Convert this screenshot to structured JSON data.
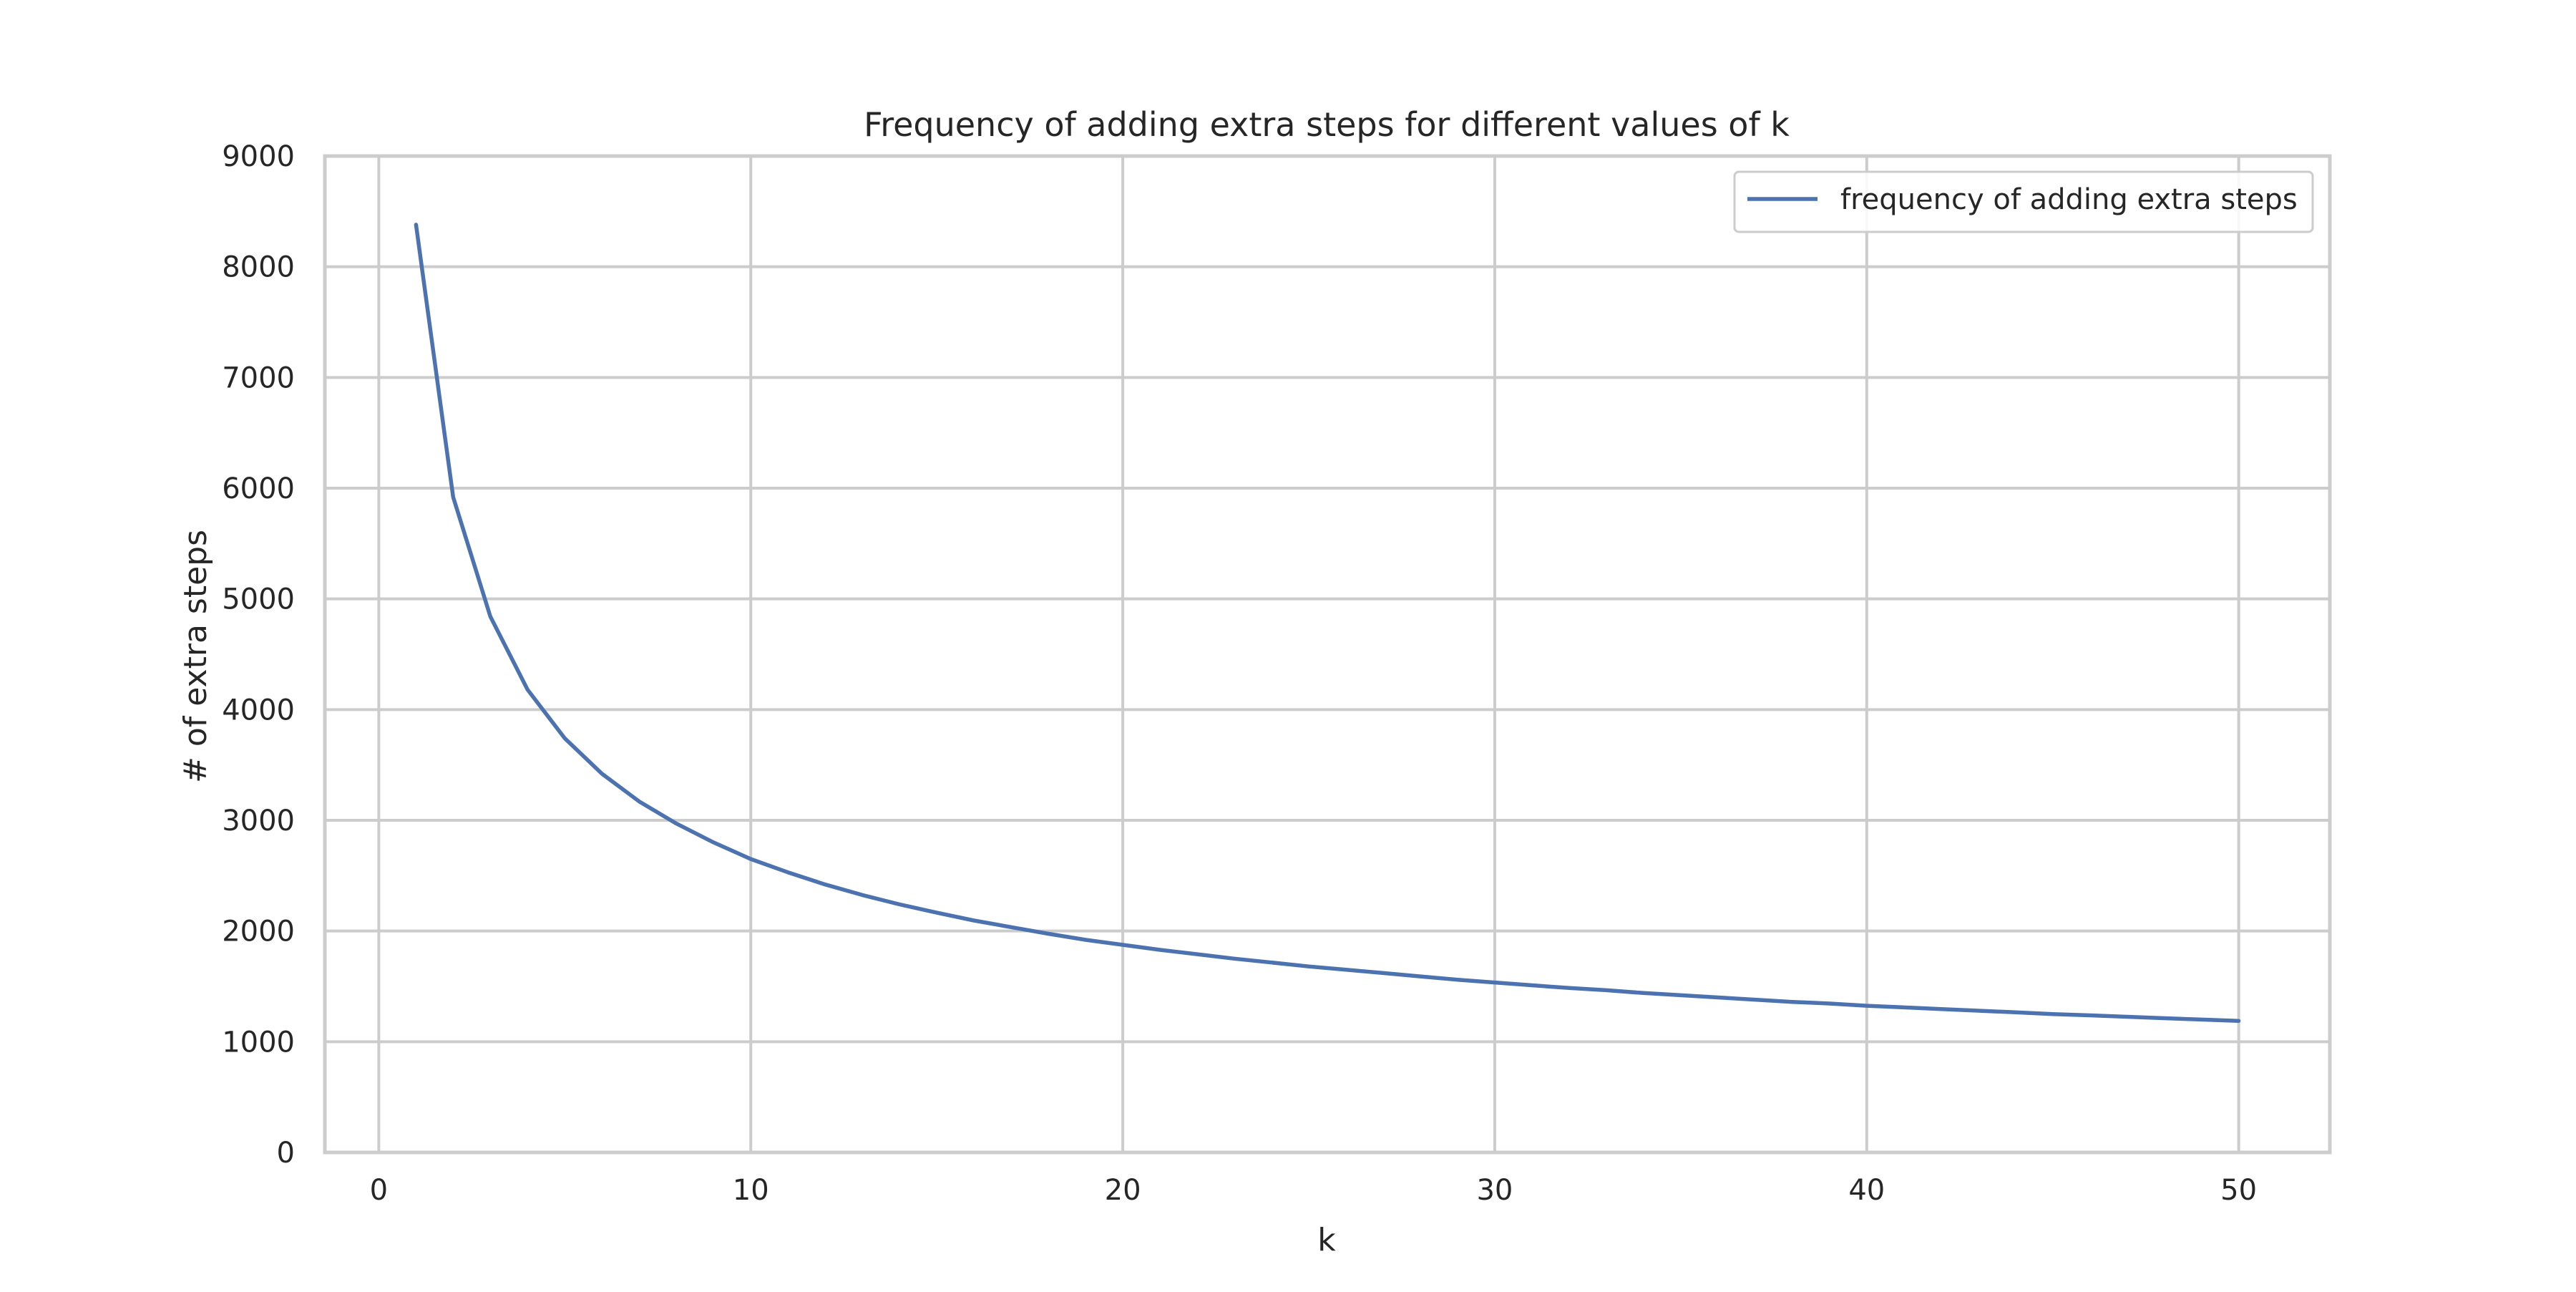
{
  "chart_data": {
    "type": "line",
    "title": "Frequency of adding extra steps for different values of k",
    "xlabel": "k",
    "ylabel": "# of extra steps",
    "xlim": [
      -1.45,
      52.45
    ],
    "ylim": [
      0,
      9000
    ],
    "x_ticks": [
      0,
      10,
      20,
      30,
      40,
      50
    ],
    "y_ticks": [
      0,
      1000,
      2000,
      3000,
      4000,
      5000,
      6000,
      7000,
      8000,
      9000
    ],
    "grid": true,
    "legend_position": "top-right",
    "series": [
      {
        "name": "frequency of adding extra steps",
        "color": "#4c72b0",
        "x": [
          1,
          2,
          3,
          4,
          5,
          6,
          7,
          8,
          9,
          10,
          11,
          12,
          13,
          14,
          15,
          16,
          17,
          18,
          19,
          20,
          21,
          22,
          23,
          24,
          25,
          26,
          27,
          28,
          29,
          30,
          31,
          32,
          33,
          34,
          35,
          36,
          37,
          38,
          39,
          40,
          41,
          42,
          43,
          44,
          45,
          46,
          47,
          48,
          49,
          50
        ],
        "y": [
          8380,
          5920,
          4840,
          4180,
          3740,
          3420,
          3170,
          2970,
          2800,
          2650,
          2530,
          2420,
          2325,
          2240,
          2165,
          2095,
          2035,
          1975,
          1920,
          1875,
          1830,
          1790,
          1750,
          1715,
          1680,
          1650,
          1620,
          1590,
          1560,
          1535,
          1510,
          1485,
          1465,
          1440,
          1420,
          1400,
          1380,
          1360,
          1345,
          1325,
          1310,
          1295,
          1280,
          1265,
          1250,
          1238,
          1225,
          1212,
          1200,
          1188
        ]
      }
    ]
  }
}
